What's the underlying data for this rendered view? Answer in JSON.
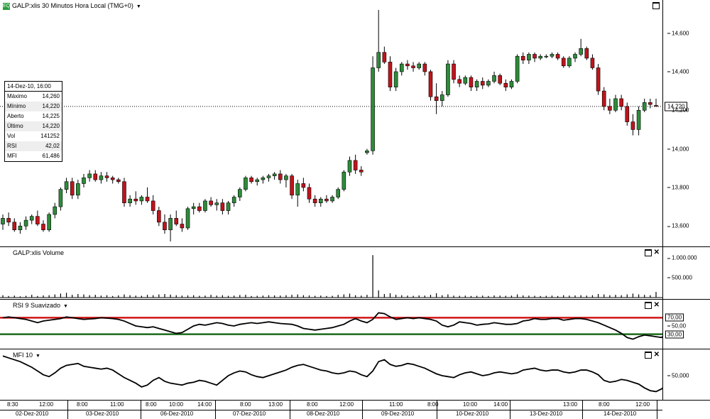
{
  "main_panel": {
    "logo": "EQ",
    "title": "GALP:xlis 30 Minutos Hora Local (TMG+0)",
    "title_dropdown_icon": "chevron-down-icon",
    "y_ticks": [
      "14,600",
      "14,400",
      "14,200",
      "14,000",
      "13,800",
      "13,600"
    ],
    "last_price_label": "14,220",
    "info_box": {
      "header": "14-Dez-10, 16:00",
      "rows": [
        {
          "label": "Máximo",
          "value": "14,260"
        },
        {
          "label": "Mínimo",
          "value": "14,220"
        },
        {
          "label": "Aberto",
          "value": "14,225"
        },
        {
          "label": "Último",
          "value": "14,220"
        },
        {
          "label": "Vol",
          "value": "141252"
        },
        {
          "label": "RSI",
          "value": "42,02"
        },
        {
          "label": "MFI",
          "value": "61,486"
        }
      ]
    }
  },
  "volume_panel": {
    "title": "GALP:xlis Volume",
    "y_ticks": [
      "1.000.000",
      "500.000"
    ]
  },
  "rsi_panel": {
    "title": "RSI 9 Suavizado",
    "y_ticks": [
      "50,00"
    ],
    "levels": [
      "70,00",
      "30,00"
    ],
    "colors": {
      "upper": "#d01414",
      "lower": "#1b6b1b"
    }
  },
  "mfi_panel": {
    "title": "MFI 10",
    "y_ticks": [
      "50,000"
    ]
  },
  "time_axis": {
    "hours": [
      "8:30",
      "12:00",
      "8:00",
      "11:00",
      "8:00",
      "10:00",
      "14:00",
      "8:00",
      "13:00",
      "8:00",
      "12:00",
      "11:00",
      "8:00",
      "10:00",
      "14:00",
      "13:00",
      "8:00",
      "12:00"
    ],
    "dates": [
      "02-Dez-2010",
      "03-Dez-2010",
      "06-Dez-2010",
      "07-Dez-2010",
      "08-Dez-2010",
      "09-Dez-2010",
      "10-Dez-2010",
      "13-Dez-2010",
      "14-Dez-2010"
    ]
  },
  "colors": {
    "up": "#2e8b3a",
    "down": "#c0141c",
    "line": "#000000"
  },
  "chart_data": [
    {
      "type": "candlestick",
      "title": "GALP:xlis 30 Minutos Hora Local (TMG+0)",
      "ylim": [
        13.52,
        14.72
      ],
      "current_price": 14.22,
      "candles": [
        [
          13.61,
          13.66,
          13.58,
          13.64
        ],
        [
          13.64,
          13.67,
          13.6,
          13.62
        ],
        [
          13.62,
          13.64,
          13.57,
          13.58
        ],
        [
          13.58,
          13.62,
          13.56,
          13.6
        ],
        [
          13.6,
          13.65,
          13.58,
          13.63
        ],
        [
          13.63,
          13.66,
          13.61,
          13.65
        ],
        [
          13.65,
          13.68,
          13.6,
          13.61
        ],
        [
          13.61,
          13.63,
          13.57,
          13.58
        ],
        [
          13.58,
          13.67,
          13.57,
          13.66
        ],
        [
          13.66,
          13.72,
          13.64,
          13.7
        ],
        [
          13.7,
          13.8,
          13.68,
          13.79
        ],
        [
          13.79,
          13.85,
          13.77,
          13.83
        ],
        [
          13.83,
          13.85,
          13.74,
          13.76
        ],
        [
          13.76,
          13.84,
          13.74,
          13.82
        ],
        [
          13.82,
          13.87,
          13.8,
          13.85
        ],
        [
          13.85,
          13.89,
          13.83,
          13.87
        ],
        [
          13.87,
          13.89,
          13.83,
          13.84
        ],
        [
          13.84,
          13.88,
          13.82,
          13.86
        ],
        [
          13.86,
          13.88,
          13.83,
          13.85
        ],
        [
          13.85,
          13.86,
          13.82,
          13.84
        ],
        [
          13.84,
          13.85,
          13.82,
          13.83
        ],
        [
          13.83,
          13.85,
          13.7,
          13.72
        ],
        [
          13.72,
          13.76,
          13.7,
          13.74
        ],
        [
          13.74,
          13.78,
          13.71,
          13.73
        ],
        [
          13.73,
          13.76,
          13.71,
          13.75
        ],
        [
          13.75,
          13.8,
          13.72,
          13.73
        ],
        [
          13.73,
          13.76,
          13.66,
          13.68
        ],
        [
          13.68,
          13.7,
          13.6,
          13.62
        ],
        [
          13.62,
          13.66,
          13.56,
          13.58
        ],
        [
          13.58,
          13.66,
          13.52,
          13.64
        ],
        [
          13.64,
          13.68,
          13.6,
          13.61
        ],
        [
          13.61,
          13.64,
          13.57,
          13.59
        ],
        [
          13.59,
          13.7,
          13.58,
          13.69
        ],
        [
          13.69,
          13.72,
          13.66,
          13.7
        ],
        [
          13.7,
          13.72,
          13.67,
          13.68
        ],
        [
          13.68,
          13.74,
          13.67,
          13.73
        ],
        [
          13.73,
          13.75,
          13.7,
          13.71
        ],
        [
          13.71,
          13.74,
          13.68,
          13.72
        ],
        [
          13.72,
          13.74,
          13.66,
          13.68
        ],
        [
          13.68,
          13.73,
          13.66,
          13.72
        ],
        [
          13.72,
          13.76,
          13.7,
          13.75
        ],
        [
          13.75,
          13.8,
          13.73,
          13.79
        ],
        [
          13.79,
          13.86,
          13.78,
          13.85
        ],
        [
          13.85,
          13.86,
          13.82,
          13.83
        ],
        [
          13.83,
          13.85,
          13.81,
          13.84
        ],
        [
          13.84,
          13.86,
          13.82,
          13.85
        ],
        [
          13.85,
          13.87,
          13.83,
          13.86
        ],
        [
          13.86,
          13.88,
          13.84,
          13.87
        ],
        [
          13.87,
          13.89,
          13.82,
          13.84
        ],
        [
          13.84,
          13.87,
          13.8,
          13.86
        ],
        [
          13.86,
          13.87,
          13.74,
          13.76
        ],
        [
          13.76,
          13.84,
          13.7,
          13.82
        ],
        [
          13.82,
          13.85,
          13.78,
          13.8
        ],
        [
          13.8,
          13.82,
          13.72,
          13.74
        ],
        [
          13.74,
          13.76,
          13.7,
          13.72
        ],
        [
          13.72,
          13.75,
          13.7,
          13.74
        ],
        [
          13.74,
          13.76,
          13.72,
          13.73
        ],
        [
          13.73,
          13.76,
          13.72,
          13.75
        ],
        [
          13.75,
          13.8,
          13.74,
          13.79
        ],
        [
          13.79,
          13.89,
          13.78,
          13.88
        ],
        [
          13.88,
          13.96,
          13.86,
          13.94
        ],
        [
          13.94,
          13.97,
          13.87,
          13.89
        ],
        [
          13.89,
          13.91,
          13.86,
          13.88
        ],
        [
          13.98,
          14.0,
          13.97,
          13.99
        ],
        [
          13.99,
          14.48,
          13.97,
          14.42
        ],
        [
          14.42,
          14.72,
          14.4,
          14.5
        ],
        [
          14.5,
          14.53,
          14.44,
          14.45
        ],
        [
          14.45,
          14.48,
          14.3,
          14.32
        ],
        [
          14.32,
          14.42,
          14.3,
          14.4
        ],
        [
          14.4,
          14.45,
          14.38,
          14.44
        ],
        [
          14.44,
          14.46,
          14.41,
          14.43
        ],
        [
          14.43,
          14.45,
          14.4,
          14.42
        ],
        [
          14.42,
          14.45,
          14.41,
          14.44
        ],
        [
          14.44,
          14.45,
          14.38,
          14.4
        ],
        [
          14.4,
          14.41,
          14.25,
          14.27
        ],
        [
          14.27,
          14.34,
          14.18,
          14.25
        ],
        [
          14.25,
          14.3,
          14.22,
          14.28
        ],
        [
          14.28,
          14.46,
          14.27,
          14.44
        ],
        [
          14.44,
          14.46,
          14.34,
          14.36
        ],
        [
          14.36,
          14.38,
          14.32,
          14.34
        ],
        [
          14.34,
          14.38,
          14.33,
          14.37
        ],
        [
          14.37,
          14.38,
          14.3,
          14.32
        ],
        [
          14.32,
          14.36,
          14.3,
          14.35
        ],
        [
          14.35,
          14.37,
          14.31,
          14.33
        ],
        [
          14.33,
          14.36,
          14.32,
          14.35
        ],
        [
          14.35,
          14.4,
          14.34,
          14.38
        ],
        [
          14.38,
          14.39,
          14.33,
          14.34
        ],
        [
          14.34,
          14.36,
          14.3,
          14.32
        ],
        [
          14.32,
          14.36,
          14.31,
          14.35
        ],
        [
          14.35,
          14.49,
          14.34,
          14.48
        ],
        [
          14.48,
          14.5,
          14.44,
          14.46
        ],
        [
          14.46,
          14.5,
          14.44,
          14.49
        ],
        [
          14.49,
          14.5,
          14.45,
          14.47
        ],
        [
          14.47,
          14.49,
          14.46,
          14.48
        ],
        [
          14.48,
          14.49,
          14.47,
          14.48
        ],
        [
          14.48,
          14.5,
          14.47,
          14.49
        ],
        [
          14.49,
          14.5,
          14.46,
          14.47
        ],
        [
          14.47,
          14.48,
          14.42,
          14.43
        ],
        [
          14.43,
          14.48,
          14.42,
          14.47
        ],
        [
          14.47,
          14.5,
          14.45,
          14.49
        ],
        [
          14.49,
          14.57,
          14.48,
          14.52
        ],
        [
          14.52,
          14.53,
          14.46,
          14.47
        ],
        [
          14.47,
          14.49,
          14.41,
          14.42
        ],
        [
          14.42,
          14.44,
          14.28,
          14.3
        ],
        [
          14.3,
          14.32,
          14.2,
          14.22
        ],
        [
          14.22,
          14.26,
          14.18,
          14.2
        ],
        [
          14.2,
          14.28,
          14.19,
          14.26
        ],
        [
          14.26,
          14.28,
          14.2,
          14.22
        ],
        [
          14.22,
          14.24,
          14.12,
          14.14
        ],
        [
          14.14,
          14.18,
          14.07,
          14.1
        ],
        [
          14.1,
          14.22,
          14.07,
          14.2
        ],
        [
          14.2,
          14.26,
          14.19,
          14.24
        ],
        [
          14.24,
          14.26,
          14.21,
          14.23
        ],
        [
          14.225,
          14.26,
          14.22,
          14.22
        ]
      ]
    },
    {
      "type": "bar",
      "title": "GALP:xlis Volume",
      "ylim": [
        0,
        1200000
      ],
      "values": [
        60000,
        40000,
        50000,
        30000,
        45000,
        70000,
        40000,
        55000,
        60000,
        80000,
        100000,
        120000,
        70000,
        90000,
        80000,
        60000,
        70000,
        50000,
        60000,
        40000,
        55000,
        80000,
        60000,
        50000,
        45000,
        70000,
        60000,
        80000,
        90000,
        75000,
        60000,
        50000,
        55000,
        60000,
        45000,
        50000,
        70000,
        50000,
        60000,
        45000,
        50000,
        65000,
        70000,
        40000,
        45000,
        50000,
        60000,
        55000,
        50000,
        60000,
        70000,
        80000,
        60000,
        55000,
        45000,
        50000,
        40000,
        45000,
        70000,
        80000,
        100000,
        60000,
        50000,
        70000,
        1070000,
        180000,
        90000,
        110000,
        70000,
        60000,
        50000,
        45000,
        55000,
        50000,
        70000,
        110000,
        60000,
        80000,
        50000,
        45000,
        50000,
        40000,
        45000,
        50000,
        40000,
        55000,
        50000,
        45000,
        50000,
        80000,
        55000,
        50000,
        45000,
        40000,
        45000,
        50000,
        40000,
        60000,
        50000,
        55000,
        60000,
        50000,
        60000,
        90000,
        80000,
        60000,
        70000,
        60000,
        80000,
        100000,
        80000,
        70000,
        60000,
        141252
      ]
    },
    {
      "type": "line",
      "title": "RSI 9 Suavizado",
      "ylim": [
        0,
        100
      ],
      "levels": [
        70,
        30
      ],
      "values": [
        70,
        72,
        70,
        68,
        66,
        62,
        58,
        62,
        64,
        66,
        68,
        72,
        70,
        68,
        66,
        67,
        68,
        70,
        69,
        68,
        66,
        62,
        56,
        50,
        48,
        46,
        48,
        44,
        40,
        36,
        32,
        34,
        42,
        50,
        54,
        52,
        55,
        58,
        56,
        52,
        50,
        54,
        56,
        58,
        56,
        58,
        60,
        58,
        56,
        55,
        54,
        50,
        44,
        42,
        40,
        42,
        44,
        46,
        50,
        54,
        62,
        68,
        62,
        58,
        66,
        82,
        80,
        72,
        66,
        68,
        70,
        68,
        70,
        68,
        66,
        62,
        52,
        48,
        52,
        60,
        58,
        56,
        52,
        54,
        55,
        58,
        56,
        54,
        54,
        56,
        62,
        64,
        68,
        66,
        66,
        68,
        68,
        64,
        66,
        68,
        68,
        66,
        62,
        58,
        52,
        46,
        40,
        32,
        22,
        18,
        24,
        28,
        26,
        24,
        22,
        38,
        44,
        44,
        43,
        42
      ]
    },
    {
      "type": "line",
      "title": "MFI 10",
      "ylim": [
        0,
        100
      ],
      "values": [
        92,
        88,
        84,
        80,
        74,
        68,
        60,
        52,
        48,
        56,
        66,
        72,
        74,
        76,
        70,
        68,
        66,
        64,
        66,
        62,
        54,
        46,
        40,
        34,
        26,
        30,
        40,
        46,
        38,
        34,
        32,
        30,
        34,
        36,
        40,
        38,
        34,
        30,
        40,
        50,
        56,
        60,
        58,
        52,
        48,
        46,
        50,
        54,
        58,
        62,
        68,
        72,
        74,
        70,
        66,
        62,
        60,
        56,
        54,
        56,
        60,
        58,
        52,
        48,
        60,
        80,
        84,
        74,
        70,
        72,
        76,
        74,
        70,
        66,
        60,
        54,
        50,
        48,
        46,
        52,
        56,
        58,
        54,
        50,
        52,
        56,
        58,
        56,
        54,
        56,
        62,
        64,
        66,
        62,
        60,
        62,
        62,
        58,
        56,
        58,
        62,
        62,
        58,
        52,
        40,
        36,
        38,
        42,
        40,
        36,
        32,
        24,
        18,
        16,
        22,
        34,
        44,
        52,
        56,
        60
      ]
    }
  ]
}
